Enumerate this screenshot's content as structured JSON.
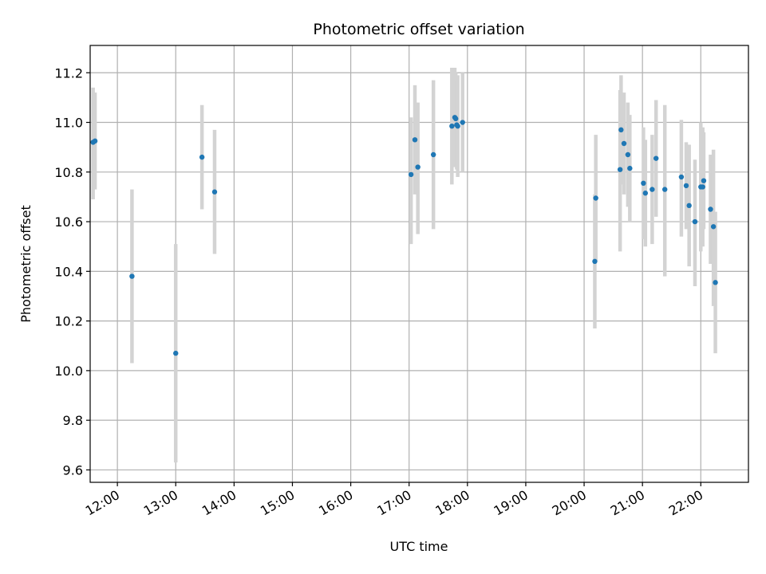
{
  "chart_data": {
    "type": "scatter",
    "title": "Photometric offset variation",
    "xlabel": "UTC time",
    "ylabel": "Photometric offset",
    "x_ticks": [
      "12:00",
      "13:00",
      "14:00",
      "15:00",
      "16:00",
      "17:00",
      "18:00",
      "19:00",
      "20:00",
      "21:00",
      "22:00"
    ],
    "y_ticks": [
      "9.6",
      "9.8",
      "10.0",
      "10.2",
      "10.4",
      "10.6",
      "10.8",
      "11.0",
      "11.2"
    ],
    "xlim": [
      "11:32",
      "22:49"
    ],
    "ylim": [
      9.55,
      11.31
    ],
    "grid": true,
    "legend": "none",
    "colors": {
      "point": "#1f77b4",
      "errorbar": "#d3d3d3",
      "grid": "#b0b0b0"
    },
    "series": [
      {
        "points": [
          {
            "t": "11:35",
            "y": 10.92,
            "lo": 10.69,
            "hi": 11.14
          },
          {
            "t": "11:37",
            "y": 10.925,
            "lo": 10.73,
            "hi": 11.12
          },
          {
            "t": "12:15",
            "y": 10.38,
            "lo": 10.03,
            "hi": 10.73
          },
          {
            "t": "13:00",
            "y": 10.07,
            "lo": 9.63,
            "hi": 10.51
          },
          {
            "t": "13:27",
            "y": 10.86,
            "lo": 10.65,
            "hi": 11.07
          },
          {
            "t": "13:40",
            "y": 10.72,
            "lo": 10.47,
            "hi": 10.97
          },
          {
            "t": "17:02",
            "y": 10.79,
            "lo": 10.51,
            "hi": 11.02
          },
          {
            "t": "17:06",
            "y": 10.93,
            "lo": 10.71,
            "hi": 11.15
          },
          {
            "t": "17:09",
            "y": 10.82,
            "lo": 10.55,
            "hi": 11.08
          },
          {
            "t": "17:25",
            "y": 10.87,
            "lo": 10.57,
            "hi": 11.17
          },
          {
            "t": "17:44",
            "y": 10.985,
            "lo": 10.75,
            "hi": 11.22
          },
          {
            "t": "17:47",
            "y": 11.02,
            "lo": 10.82,
            "hi": 11.22
          },
          {
            "t": "17:48",
            "y": 11.015,
            "lo": 10.84,
            "hi": 11.2
          },
          {
            "t": "17:49",
            "y": 10.99,
            "lo": 10.81,
            "hi": 11.17
          },
          {
            "t": "17:50",
            "y": 10.985,
            "lo": 10.78,
            "hi": 11.19
          },
          {
            "t": "17:55",
            "y": 11.0,
            "lo": 10.8,
            "hi": 11.2
          },
          {
            "t": "20:11",
            "y": 10.44,
            "lo": 10.17,
            "hi": 10.71
          },
          {
            "t": "20:12",
            "y": 10.695,
            "lo": 10.44,
            "hi": 10.95
          },
          {
            "t": "20:37",
            "y": 10.81,
            "lo": 10.48,
            "hi": 11.13
          },
          {
            "t": "20:38",
            "y": 10.97,
            "lo": 10.75,
            "hi": 11.19
          },
          {
            "t": "20:41",
            "y": 10.915,
            "lo": 10.71,
            "hi": 11.12
          },
          {
            "t": "20:45",
            "y": 10.87,
            "lo": 10.66,
            "hi": 11.08
          },
          {
            "t": "20:47",
            "y": 10.815,
            "lo": 10.6,
            "hi": 11.03
          },
          {
            "t": "21:01",
            "y": 10.755,
            "lo": 10.53,
            "hi": 10.98
          },
          {
            "t": "21:03",
            "y": 10.715,
            "lo": 10.5,
            "hi": 10.93
          },
          {
            "t": "21:10",
            "y": 10.73,
            "lo": 10.51,
            "hi": 10.95
          },
          {
            "t": "21:14",
            "y": 10.855,
            "lo": 10.62,
            "hi": 11.09
          },
          {
            "t": "21:23",
            "y": 10.73,
            "lo": 10.38,
            "hi": 11.07
          },
          {
            "t": "21:40",
            "y": 10.78,
            "lo": 10.54,
            "hi": 11.01
          },
          {
            "t": "21:45",
            "y": 10.745,
            "lo": 10.57,
            "hi": 10.92
          },
          {
            "t": "21:48",
            "y": 10.665,
            "lo": 10.42,
            "hi": 10.91
          },
          {
            "t": "21:54",
            "y": 10.6,
            "lo": 10.34,
            "hi": 10.85
          },
          {
            "t": "22:00",
            "y": 10.74,
            "lo": 10.48,
            "hi": 11.0
          },
          {
            "t": "22:02",
            "y": 10.74,
            "lo": 10.5,
            "hi": 10.98
          },
          {
            "t": "22:03",
            "y": 10.765,
            "lo": 10.57,
            "hi": 10.96
          },
          {
            "t": "22:10",
            "y": 10.65,
            "lo": 10.43,
            "hi": 10.87
          },
          {
            "t": "22:13",
            "y": 10.58,
            "lo": 10.26,
            "hi": 10.89
          },
          {
            "t": "22:15",
            "y": 10.355,
            "lo": 10.07,
            "hi": 10.64
          }
        ]
      }
    ]
  }
}
